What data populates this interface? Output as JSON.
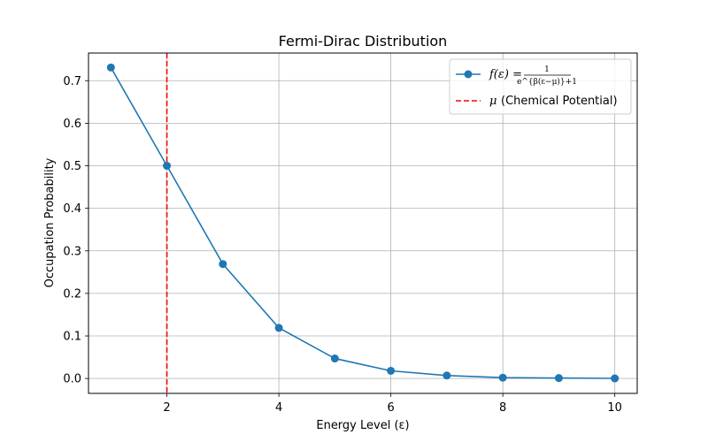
{
  "chart_data": {
    "type": "line",
    "title": "Fermi-Dirac Distribution",
    "xlabel": "Energy Level (ε)",
    "ylabel": "Occupation Probability",
    "xlim": [
      0.6,
      10.4
    ],
    "ylim": [
      -0.035,
      0.765
    ],
    "xticks": [
      2,
      4,
      6,
      8,
      10
    ],
    "yticks": [
      0.0,
      0.1,
      0.2,
      0.3,
      0.4,
      0.5,
      0.6,
      0.7
    ],
    "grid": true,
    "legend_position": "top-right",
    "series": [
      {
        "name": "f(ε) = 1/(e^{β(ε−μ)}+1)",
        "color": "#1f77b4",
        "marker": "circle",
        "x": [
          1,
          2,
          3,
          4,
          5,
          6,
          7,
          8,
          9,
          10
        ],
        "y": [
          0.731,
          0.5,
          0.269,
          0.119,
          0.047,
          0.018,
          0.007,
          0.002,
          0.001,
          0.0003
        ]
      }
    ],
    "vlines": [
      {
        "name": "μ (Chemical Potential)",
        "x": 2,
        "color": "#ff0000",
        "style": "dashed"
      }
    ],
    "legend": {
      "entries": [
        {
          "label_prefix": "f(ε) =",
          "numerator": "1",
          "denominator": "e^{β(ε−μ)}+1"
        },
        {
          "label_math": "μ",
          "label_text": "(Chemical Potential)"
        }
      ]
    }
  }
}
